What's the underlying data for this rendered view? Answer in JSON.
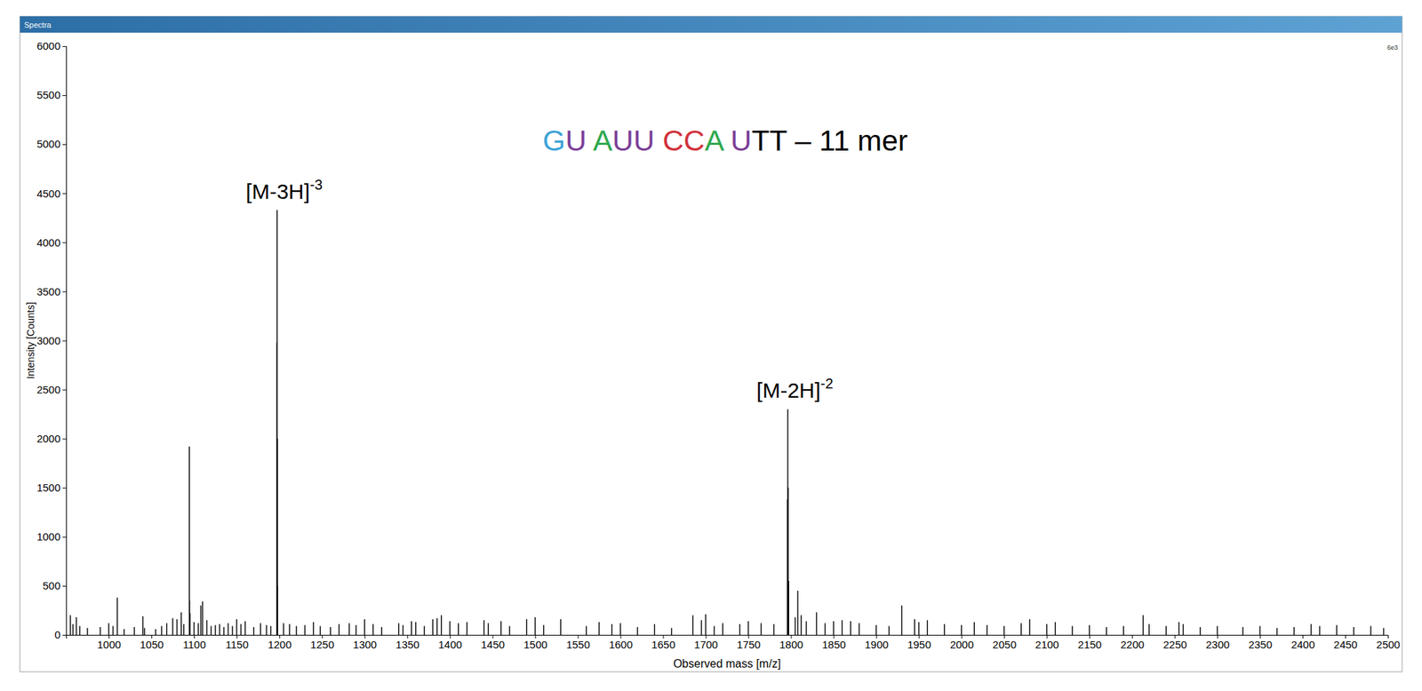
{
  "window": {
    "title": "Spectra",
    "scale_label": "6e3"
  },
  "chart_data": {
    "type": "stem",
    "title": [
      {
        "text": "G",
        "color": "#3ba3d6"
      },
      {
        "text": "U ",
        "color": "#7b3f98"
      },
      {
        "text": "A",
        "color": "#2fa84f"
      },
      {
        "text": "UU ",
        "color": "#7b3f98"
      },
      {
        "text": "CC",
        "color": "#d1323b"
      },
      {
        "text": "A ",
        "color": "#2fa84f"
      },
      {
        "text": "U",
        "color": "#7b3f98"
      },
      {
        "text": "TT – 11 mer",
        "color": "#000000"
      }
    ],
    "x_label": "Observed mass [m/z]",
    "y_label": "Intensity [Counts]",
    "color": "#000000",
    "grid": false,
    "xlim": [
      950,
      2500
    ],
    "ylim": [
      0,
      6000
    ],
    "xticks": [
      1000,
      1050,
      1100,
      1150,
      1200,
      1250,
      1300,
      1350,
      1400,
      1450,
      1500,
      1550,
      1600,
      1650,
      1700,
      1750,
      1800,
      1850,
      1900,
      1950,
      2000,
      2050,
      2100,
      2150,
      2200,
      2250,
      2300,
      2350,
      2400,
      2450,
      2500
    ],
    "yticks": [
      0,
      500,
      1000,
      1500,
      2000,
      2500,
      3000,
      3500,
      4000,
      4500,
      5000,
      5500,
      6000
    ],
    "annotations": [
      {
        "text": "[M-3H]",
        "superscript": "-3",
        "x": 1197.4,
        "y": 4330
      },
      {
        "text": "[M-2H]",
        "superscript": "-2",
        "x": 1796.3,
        "y": 2300
      }
    ],
    "x": [
      955,
      958,
      962,
      966,
      975,
      990,
      1000,
      1005,
      1010,
      1018,
      1030,
      1040,
      1042,
      1055,
      1062,
      1068,
      1075,
      1080,
      1085,
      1088,
      1094.5,
      1094.8,
      1095.3,
      1100,
      1105,
      1108,
      1110,
      1115,
      1120,
      1125,
      1130,
      1135,
      1140,
      1145,
      1150,
      1155,
      1160,
      1170,
      1178,
      1185,
      1190,
      1197.1,
      1197.4,
      1197.7,
      1198.0,
      1205,
      1212,
      1220,
      1230,
      1240,
      1248,
      1260,
      1270,
      1282,
      1290,
      1300,
      1310,
      1320,
      1340,
      1345,
      1355,
      1360,
      1370,
      1380,
      1385,
      1390,
      1400,
      1410,
      1420,
      1440,
      1445,
      1460,
      1470,
      1490,
      1500,
      1510,
      1530,
      1560,
      1575,
      1590,
      1600,
      1620,
      1640,
      1660,
      1685,
      1695,
      1700,
      1710,
      1720,
      1740,
      1750,
      1765,
      1780,
      1795.8,
      1796.3,
      1796.8,
      1797.3,
      1805,
      1808,
      1812,
      1818,
      1830,
      1840,
      1850,
      1860,
      1870,
      1880,
      1900,
      1915,
      1930,
      1945,
      1950,
      1960,
      1980,
      2000,
      2015,
      2030,
      2050,
      2070,
      2080,
      2100,
      2110,
      2130,
      2150,
      2170,
      2190,
      2213,
      2220,
      2240,
      2255,
      2260,
      2280,
      2300,
      2330,
      2350,
      2370,
      2390,
      2410,
      2420,
      2440,
      2460,
      2480,
      2495
    ],
    "values": [
      200,
      110,
      180,
      90,
      70,
      80,
      120,
      90,
      380,
      60,
      80,
      190,
      70,
      60,
      90,
      120,
      170,
      160,
      230,
      110,
      1920,
      350,
      220,
      130,
      120,
      300,
      340,
      150,
      90,
      100,
      110,
      80,
      120,
      90,
      160,
      110,
      140,
      80,
      120,
      100,
      90,
      2980,
      4330,
      2000,
      500,
      120,
      110,
      90,
      100,
      130,
      90,
      80,
      110,
      120,
      100,
      160,
      110,
      80,
      120,
      100,
      140,
      130,
      90,
      160,
      170,
      200,
      140,
      120,
      130,
      150,
      120,
      140,
      90,
      160,
      180,
      100,
      160,
      90,
      130,
      110,
      120,
      80,
      110,
      70,
      200,
      150,
      210,
      90,
      120,
      110,
      140,
      120,
      110,
      1380,
      2300,
      1500,
      550,
      180,
      450,
      200,
      140,
      230,
      120,
      140,
      150,
      140,
      120,
      100,
      90,
      300,
      160,
      130,
      150,
      110,
      100,
      130,
      100,
      90,
      120,
      160,
      110,
      130,
      90,
      100,
      80,
      90,
      200,
      110,
      90,
      130,
      110,
      80,
      90,
      80,
      90,
      70,
      80,
      110,
      90,
      100,
      80,
      90,
      70
    ]
  }
}
